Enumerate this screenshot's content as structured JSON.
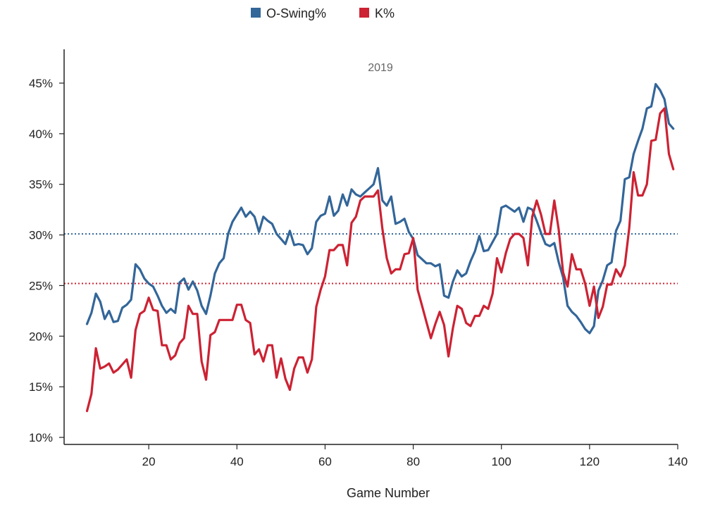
{
  "chart_data": {
    "type": "line",
    "title": "2019",
    "xlabel": "Game Number",
    "ylabel": "",
    "xlim": [
      0,
      140
    ],
    "ylim": [
      0.095,
      0.48
    ],
    "x_ticks": [
      20,
      40,
      60,
      80,
      100,
      120,
      140
    ],
    "y_ticks": [
      0.1,
      0.15,
      0.2,
      0.25,
      0.3,
      0.35,
      0.4,
      0.45
    ],
    "y_tick_labels": [
      "10%",
      "15%",
      "20%",
      "25%",
      "30%",
      "35%",
      "40%",
      "45%"
    ],
    "grid": false,
    "legend_position": "top-center",
    "series": [
      {
        "name": "O-Swing%",
        "color": "#336699",
        "reference_line": 0.301,
        "x": [
          6,
          7,
          8,
          9,
          10,
          11,
          12,
          13,
          14,
          15,
          16,
          17,
          18,
          19,
          20,
          21,
          22,
          23,
          24,
          25,
          26,
          27,
          28,
          29,
          30,
          31,
          32,
          33,
          34,
          35,
          36,
          37,
          38,
          39,
          40,
          41,
          42,
          43,
          44,
          45,
          46,
          47,
          48,
          49,
          50,
          51,
          52,
          53,
          54,
          55,
          56,
          57,
          58,
          59,
          60,
          61,
          62,
          63,
          64,
          65,
          66,
          67,
          68,
          69,
          70,
          71,
          72,
          73,
          74,
          75,
          76,
          77,
          78,
          79,
          80,
          81,
          82,
          83,
          84,
          85,
          86,
          87,
          88,
          89,
          90,
          91,
          92,
          93,
          94,
          95,
          96,
          97,
          98,
          99,
          100,
          101,
          102,
          103,
          104,
          105,
          106,
          107,
          108,
          109,
          110,
          111,
          112,
          113,
          114,
          115,
          116,
          117,
          118,
          119,
          120,
          121,
          122,
          123,
          124,
          125,
          126,
          127,
          128,
          129,
          130,
          131,
          132,
          133,
          134,
          135,
          136,
          137,
          138,
          139
        ],
        "values": [
          0.212,
          0.223,
          0.242,
          0.234,
          0.217,
          0.225,
          0.214,
          0.215,
          0.228,
          0.231,
          0.236,
          0.271,
          0.266,
          0.257,
          0.252,
          0.249,
          0.24,
          0.23,
          0.223,
          0.227,
          0.223,
          0.253,
          0.257,
          0.246,
          0.254,
          0.245,
          0.23,
          0.222,
          0.24,
          0.262,
          0.272,
          0.277,
          0.301,
          0.313,
          0.32,
          0.327,
          0.318,
          0.323,
          0.318,
          0.303,
          0.318,
          0.314,
          0.311,
          0.301,
          0.296,
          0.291,
          0.304,
          0.29,
          0.291,
          0.29,
          0.281,
          0.287,
          0.313,
          0.319,
          0.321,
          0.338,
          0.319,
          0.324,
          0.34,
          0.329,
          0.345,
          0.34,
          0.338,
          0.342,
          0.346,
          0.35,
          0.366,
          0.334,
          0.329,
          0.338,
          0.311,
          0.313,
          0.316,
          0.303,
          0.296,
          0.28,
          0.276,
          0.272,
          0.272,
          0.269,
          0.271,
          0.24,
          0.238,
          0.254,
          0.265,
          0.259,
          0.262,
          0.274,
          0.284,
          0.299,
          0.284,
          0.285,
          0.293,
          0.301,
          0.327,
          0.329,
          0.326,
          0.323,
          0.327,
          0.313,
          0.327,
          0.325,
          0.314,
          0.302,
          0.291,
          0.289,
          0.292,
          0.273,
          0.258,
          0.23,
          0.224,
          0.22,
          0.214,
          0.207,
          0.203,
          0.21,
          0.245,
          0.255,
          0.27,
          0.273,
          0.304,
          0.314,
          0.355,
          0.357,
          0.38,
          0.393,
          0.405,
          0.425,
          0.427,
          0.449,
          0.443,
          0.434,
          0.41,
          0.405
        ]
      },
      {
        "name": "K%",
        "color": "#cc2233",
        "reference_line": 0.252,
        "x": [
          6,
          7,
          8,
          9,
          10,
          11,
          12,
          13,
          14,
          15,
          16,
          17,
          18,
          19,
          20,
          21,
          22,
          23,
          24,
          25,
          26,
          27,
          28,
          29,
          30,
          31,
          32,
          33,
          34,
          35,
          36,
          37,
          38,
          39,
          40,
          41,
          42,
          43,
          44,
          45,
          46,
          47,
          48,
          49,
          50,
          51,
          52,
          53,
          54,
          55,
          56,
          57,
          58,
          59,
          60,
          61,
          62,
          63,
          64,
          65,
          66,
          67,
          68,
          69,
          70,
          71,
          72,
          73,
          74,
          75,
          76,
          77,
          78,
          79,
          80,
          81,
          82,
          83,
          84,
          85,
          86,
          87,
          88,
          89,
          90,
          91,
          92,
          93,
          94,
          95,
          96,
          97,
          98,
          99,
          100,
          101,
          102,
          103,
          104,
          105,
          106,
          107,
          108,
          109,
          110,
          111,
          112,
          113,
          114,
          115,
          116,
          117,
          118,
          119,
          120,
          121,
          122,
          123,
          124,
          125,
          126,
          127,
          128,
          129,
          130,
          131,
          132,
          133,
          134,
          135,
          136,
          137,
          138,
          139
        ],
        "values": [
          0.126,
          0.143,
          0.188,
          0.168,
          0.17,
          0.173,
          0.164,
          0.167,
          0.172,
          0.177,
          0.159,
          0.206,
          0.222,
          0.225,
          0.238,
          0.226,
          0.225,
          0.191,
          0.191,
          0.177,
          0.181,
          0.193,
          0.198,
          0.23,
          0.222,
          0.222,
          0.175,
          0.157,
          0.201,
          0.204,
          0.216,
          0.216,
          0.216,
          0.216,
          0.231,
          0.231,
          0.216,
          0.213,
          0.182,
          0.187,
          0.175,
          0.191,
          0.191,
          0.159,
          0.178,
          0.158,
          0.147,
          0.168,
          0.179,
          0.179,
          0.164,
          0.177,
          0.229,
          0.246,
          0.259,
          0.285,
          0.285,
          0.29,
          0.29,
          0.27,
          0.312,
          0.318,
          0.334,
          0.338,
          0.338,
          0.338,
          0.344,
          0.306,
          0.277,
          0.262,
          0.266,
          0.266,
          0.281,
          0.282,
          0.297,
          0.246,
          0.23,
          0.214,
          0.198,
          0.212,
          0.224,
          0.211,
          0.18,
          0.208,
          0.23,
          0.227,
          0.213,
          0.21,
          0.22,
          0.22,
          0.23,
          0.227,
          0.242,
          0.277,
          0.263,
          0.282,
          0.296,
          0.301,
          0.301,
          0.297,
          0.27,
          0.318,
          0.334,
          0.32,
          0.301,
          0.301,
          0.334,
          0.305,
          0.263,
          0.249,
          0.281,
          0.266,
          0.266,
          0.252,
          0.23,
          0.249,
          0.218,
          0.229,
          0.251,
          0.251,
          0.266,
          0.259,
          0.27,
          0.307,
          0.362,
          0.339,
          0.339,
          0.35,
          0.393,
          0.394,
          0.42,
          0.425,
          0.38,
          0.365
        ]
      }
    ]
  }
}
